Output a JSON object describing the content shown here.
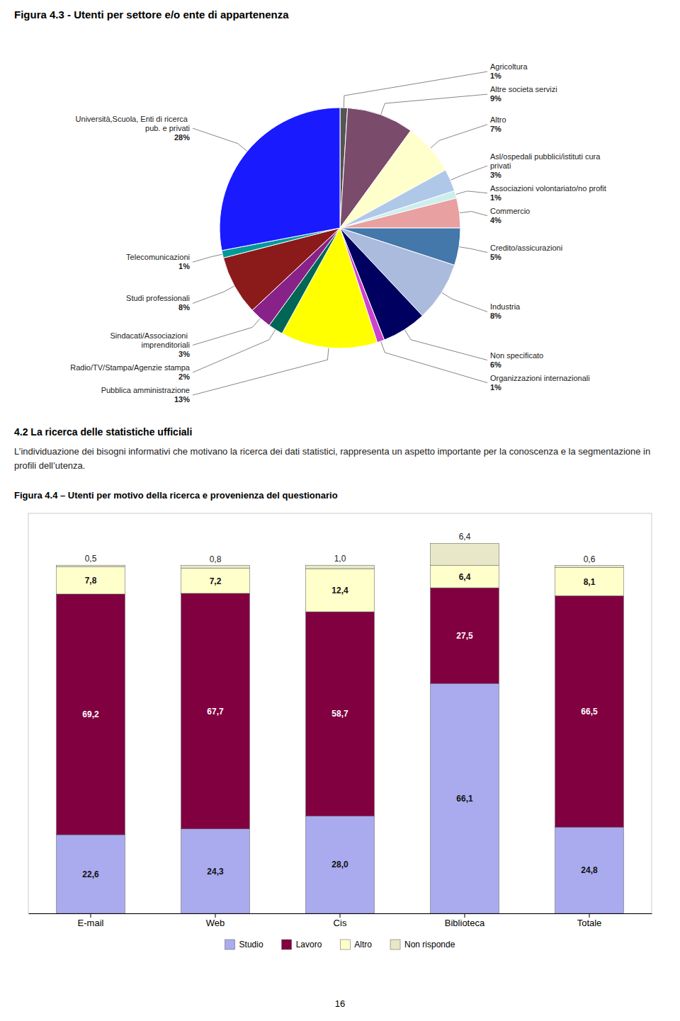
{
  "chart_data": [
    {
      "type": "pie",
      "title": "Figura 4.3 - Utenti per settore e/o ente di appartenenza",
      "categories": [
        "Agricoltura",
        "Altre societa servizi",
        "Altro",
        "Asl/ospedali pubblici/istituti cura privati",
        "Associazioni volontariato/no profit",
        "Commercio",
        "Credito/assicurazioni",
        "Industria",
        "Non specificato",
        "Organizzazioni internazionali",
        "Pubblica amministrazione",
        "Radio/TV/Stampa/Agenzie stampa",
        "Sindacati/Associazioni imprenditoriali",
        "Studi professionali",
        "Telecomunicazioni",
        "Università,Scuola, Enti di ricerca pub. e privati"
      ],
      "values": [
        1,
        9,
        7,
        3,
        1,
        4,
        5,
        8,
        6,
        1,
        13,
        2,
        3,
        8,
        1,
        28
      ],
      "value_labels": [
        "1%",
        "9%",
        "7%",
        "3%",
        "1%",
        "4%",
        "5%",
        "8%",
        "6%",
        "1%",
        "13%",
        "2%",
        "3%",
        "8%",
        "1%",
        "28%"
      ],
      "colors": [
        "#555555",
        "#7b4b6b",
        "#ffffcc",
        "#b0c8e8",
        "#cceeee",
        "#e8a0a0",
        "#4477aa",
        "#aabbdd",
        "#000060",
        "#cc44cc",
        "#ffff00",
        "#006655",
        "#882288",
        "#8b1a1a",
        "#009999",
        "#1a1aff"
      ],
      "data_labels": true
    },
    {
      "type": "bar",
      "stacked": true,
      "title": "Figura 4.4 – Utenti per motivo della ricerca e provenienza del questionario",
      "categories": [
        "E-mail",
        "Web",
        "Cis",
        "Biblioteca",
        "Totale"
      ],
      "series": [
        {
          "name": "Studio",
          "color": "#aaaaee",
          "values": [
            22.6,
            24.3,
            28.0,
            66.1,
            24.8
          ],
          "value_labels": [
            "22,6",
            "24,3",
            "28,0",
            "66,1",
            "24,8"
          ]
        },
        {
          "name": "Lavoro",
          "color": "#800040",
          "values": [
            69.2,
            67.7,
            58.7,
            27.5,
            66.5
          ],
          "value_labels": [
            "69,2",
            "67,7",
            "58,7",
            "27,5",
            "66,5"
          ]
        },
        {
          "name": "Altro",
          "color": "#ffffcc",
          "values": [
            7.8,
            7.2,
            12.4,
            6.4,
            8.1
          ],
          "value_labels": [
            "7,8",
            "7,2",
            "12,4",
            "6,4",
            "8,1"
          ]
        },
        {
          "name": "Non risponde",
          "color": "#e8e8c8",
          "values": [
            0.5,
            0.8,
            1.0,
            6.4,
            0.6
          ],
          "value_labels": [
            "0,5",
            "0,8",
            "1,0",
            "6,4",
            "0,6"
          ]
        }
      ],
      "ylim": [
        0,
        115
      ],
      "tick_labels": "x",
      "data_labels": true,
      "legend": "bottom",
      "annotations": [
        "4.2 La ricerca delle statistiche ufficiali",
        "L’individuazione dei bisogni informativi che motivano la ricerca dei dati statistici, rappresenta un aspetto importante per la conoscenza e la segmentazione in profili dell’utenza.",
        "16"
      ]
    }
  ]
}
